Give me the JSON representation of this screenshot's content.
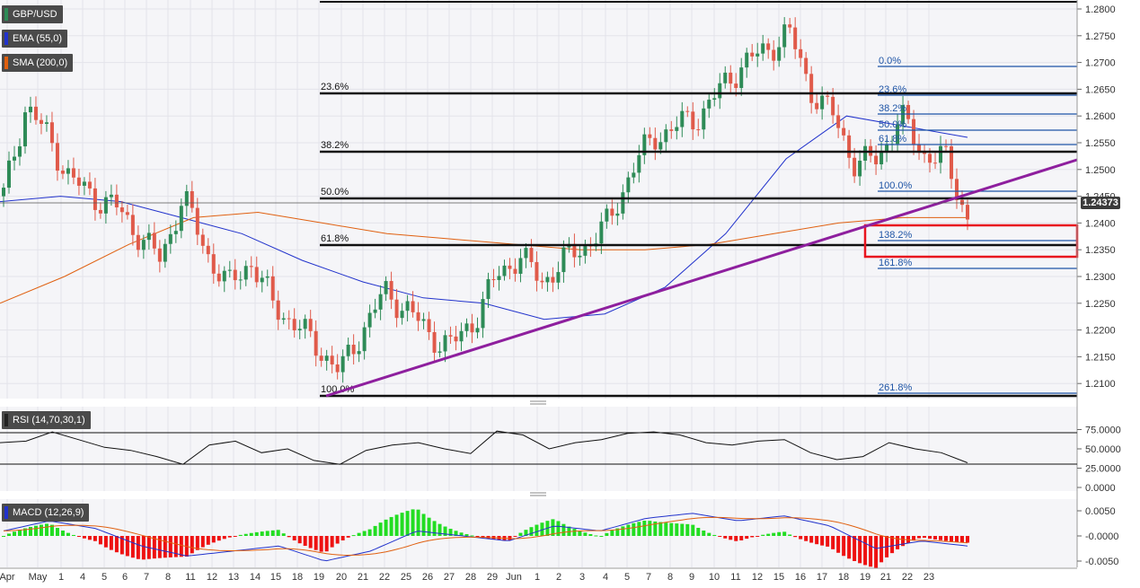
{
  "symbol": "GBP/USD",
  "indicators": {
    "ema": {
      "label": "EMA (55,0)",
      "color": "#2233cc"
    },
    "sma": {
      "label": "SMA (200,0)",
      "color": "#e06010"
    },
    "rsi": {
      "label": "RSI (14,70,30,1)"
    },
    "macd": {
      "label": "MACD (12,26,9)"
    }
  },
  "colors": {
    "bull": "#2e8b57",
    "bear": "#e05a4a",
    "trendline": "#8e1f9e",
    "fib_label": "#1f55a6",
    "zone": "#e8141e"
  },
  "last_price": "1.24373",
  "price_axis": [
    "1.2800",
    "1.2750",
    "1.2700",
    "1.2650",
    "1.2600",
    "1.2550",
    "1.2500",
    "1.2450",
    "1.2400",
    "1.2350",
    "1.2300",
    "1.2250",
    "1.2200",
    "1.2150",
    "1.2100"
  ],
  "rsi_axis": [
    "75.0000",
    "50.0000",
    "25.0000",
    "0.0000"
  ],
  "macd_axis": [
    "0.0050",
    "-0.0000",
    "-0.0050"
  ],
  "date_axis": [
    "Apr",
    "May",
    "1",
    "4",
    "5",
    "6",
    "7",
    "8",
    "11",
    "12",
    "13",
    "14",
    "15",
    "18",
    "19",
    "20",
    "21",
    "22",
    "25",
    "26",
    "27",
    "28",
    "29",
    "Jun",
    "1",
    "2",
    "3",
    "4",
    "5",
    "7",
    "8",
    "9",
    "10",
    "11",
    "12",
    "15",
    "16",
    "17",
    "18",
    "19",
    "21",
    "22",
    "23"
  ],
  "fib_main": [
    "23.6%",
    "38.2%",
    "50.0%",
    "61.8%",
    "100.0%"
  ],
  "fib_right": [
    "0.0%",
    "23.6%",
    "38.2%",
    "50.0%",
    "61.8%",
    "100.0%",
    "138.2%",
    "161.8%",
    "261.8%"
  ],
  "chart_data": {
    "type": "line",
    "series": [
      {
        "name": "GBP/USD",
        "values": [
          1.245,
          1.262,
          1.256,
          1.248,
          1.245,
          1.243,
          1.238,
          1.233,
          1.245,
          1.235,
          1.228,
          1.233,
          1.225,
          1.221,
          1.217,
          1.212,
          1.22,
          1.227,
          1.224,
          1.219,
          1.217,
          1.222,
          1.23,
          1.234,
          1.229,
          1.233,
          1.236,
          1.24,
          1.25,
          1.256,
          1.258,
          1.26,
          1.265,
          1.27,
          1.272,
          1.276,
          1.265,
          1.26,
          1.251,
          1.252,
          1.26,
          1.253,
          1.252,
          1.241
        ]
      },
      {
        "name": "EMA (55,0)",
        "values": [
          1.244,
          1.245,
          1.244,
          1.241,
          1.238,
          1.233,
          1.229,
          1.226,
          1.225,
          1.222,
          1.223,
          1.228,
          1.238,
          1.252,
          1.26,
          1.258,
          1.256
        ]
      },
      {
        "name": "SMA (200,0)",
        "values": [
          1.225,
          1.23,
          1.236,
          1.241,
          1.242,
          1.24,
          1.238,
          1.237,
          1.236,
          1.235,
          1.235,
          1.236,
          1.238,
          1.24,
          1.241,
          1.241
        ]
      },
      {
        "name": "RSI (14,70,30,1)",
        "values": [
          58,
          60,
          72,
          62,
          52,
          48,
          40,
          30,
          55,
          60,
          45,
          50,
          35,
          30,
          48,
          55,
          58,
          50,
          44,
          73,
          68,
          50,
          58,
          62,
          70,
          72,
          68,
          58,
          55,
          60,
          62,
          45,
          36,
          40,
          58,
          50,
          45,
          32
        ]
      },
      {
        "name": "MACD (12,26,9)",
        "values": [
          0.001,
          0.003,
          0.0015,
          -0.002,
          -0.004,
          -0.003,
          -0.002,
          -0.005,
          -0.003,
          0.001,
          0.0,
          -0.001,
          0.002,
          0.001,
          0.0035,
          0.0045,
          0.003,
          0.004,
          0.002,
          -0.0025,
          -0.001,
          -0.002
        ]
      }
    ],
    "ylim": [
      1.208,
      1.2815
    ],
    "last_value": 1.24373
  }
}
